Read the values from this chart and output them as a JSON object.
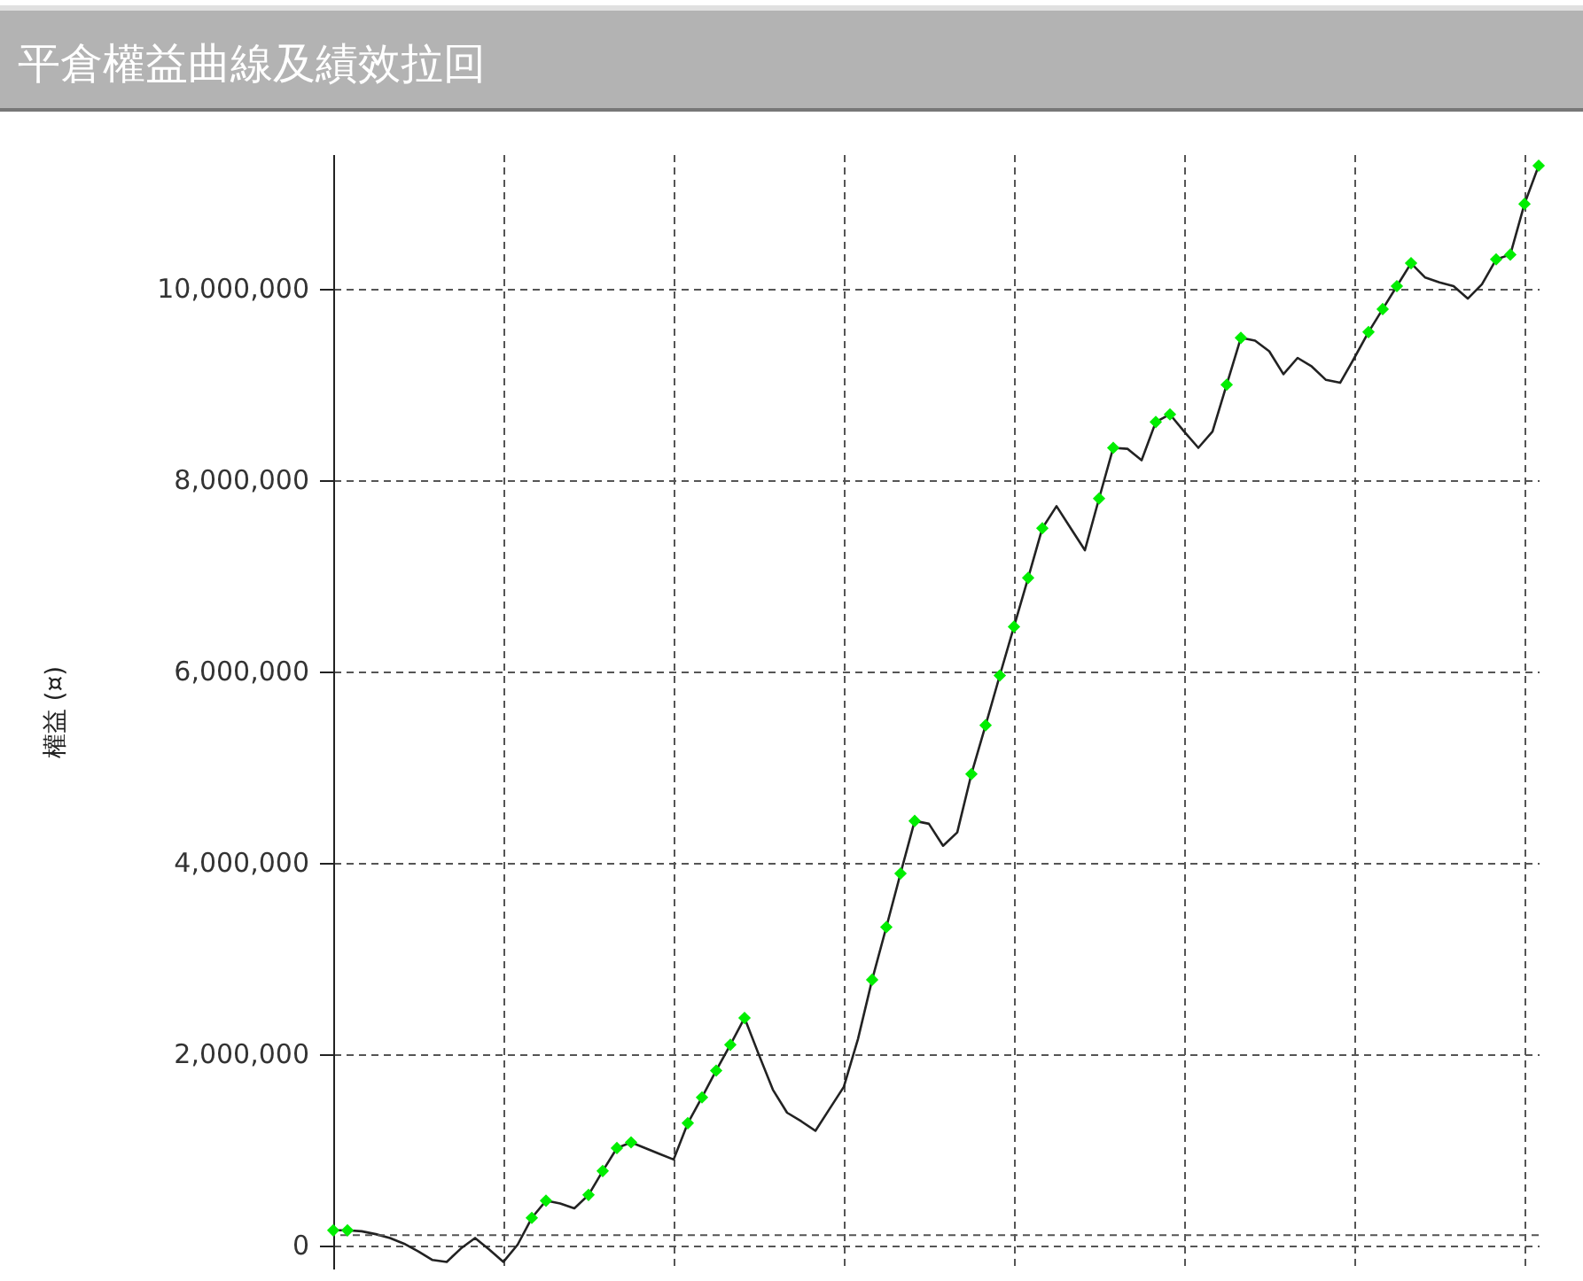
{
  "chart_data": {
    "type": "line",
    "title": "平倉權益曲線及績效拉回",
    "ylabel": "權益 (¤)",
    "categories": [
      null,
      null,
      null,
      null,
      null,
      null,
      null,
      null,
      null,
      null,
      null,
      null,
      null,
      null,
      null,
      null,
      null,
      null,
      null,
      null,
      null,
      null,
      null,
      null,
      null,
      null,
      null,
      null,
      null,
      null,
      null,
      null,
      null,
      null,
      null,
      null,
      null,
      null,
      null,
      null,
      null,
      null,
      null,
      null,
      null,
      null,
      null,
      null,
      null,
      null,
      null,
      null,
      null,
      null,
      null,
      null,
      null,
      null,
      null,
      null,
      null,
      null,
      null,
      null,
      null,
      null,
      null,
      null,
      null,
      null,
      null,
      null,
      null,
      null,
      null,
      null,
      null,
      null,
      null,
      null,
      null,
      null,
      null,
      null,
      null,
      null
    ],
    "ylim": [
      -250000,
      11400000
    ],
    "yticks": [
      0,
      {
        "value": 2000000,
        "label": "2,000,000"
      },
      {
        "value": 4000000,
        "label": "4,000,000"
      },
      {
        "value": 6000000,
        "label": "6,000,000"
      },
      {
        "value": 8000000,
        "label": "8,000,000"
      },
      {
        "value": 10000000,
        "label": "10,000,000"
      }
    ],
    "grid": true,
    "tick_labels": "y",
    "ref_lines": [
      {
        "axis": "y",
        "value": 100000,
        "color": "#555555",
        "line_style": "dashed"
      }
    ],
    "series": [
      {
        "type": "line",
        "color": "#222222",
        "line_style": "solid",
        "values": [
          150000,
          150000,
          140000,
          110000,
          70000,
          10000,
          -70000,
          -160000,
          -180000,
          -40000,
          70000,
          -50000,
          -180000,
          0,
          280000,
          460000,
          430000,
          380000,
          520000,
          770000,
          1010000,
          1070000,
          1010000,
          950000,
          890000,
          1270000,
          1540000,
          1820000,
          2090000,
          2370000,
          1990000,
          1620000,
          1380000,
          1290000,
          1190000,
          1420000,
          1650000,
          2150000,
          2770000,
          3320000,
          3880000,
          4430000,
          4400000,
          4170000,
          4310000,
          4920000,
          5430000,
          5950000,
          6460000,
          6970000,
          7490000,
          7720000,
          7490000,
          7260000,
          7800000,
          8330000,
          8320000,
          8200000,
          8600000,
          8680000,
          8500000,
          8330000,
          8500000,
          8990000,
          9480000,
          9450000,
          9340000,
          9100000,
          9270000,
          9180000,
          9040000,
          9010000,
          9270000,
          9540000,
          9780000,
          10020000,
          10260000,
          10110000,
          10060000,
          10020000,
          9890000,
          10040000,
          10300000,
          10350000,
          10880000,
          11280000
        ]
      },
      {
        "type": "scatter",
        "color": "#00ee00",
        "marker": "diamond",
        "values": [
          150000,
          150000,
          null,
          null,
          null,
          null,
          null,
          null,
          null,
          null,
          null,
          null,
          null,
          null,
          280000,
          460000,
          null,
          null,
          520000,
          770000,
          1010000,
          1070000,
          null,
          null,
          null,
          1270000,
          1540000,
          1820000,
          2090000,
          2370000,
          null,
          null,
          null,
          null,
          null,
          null,
          null,
          null,
          2770000,
          3320000,
          3880000,
          4430000,
          null,
          null,
          null,
          4920000,
          5430000,
          5950000,
          6460000,
          6970000,
          7490000,
          null,
          null,
          null,
          7800000,
          8330000,
          null,
          null,
          8600000,
          8680000,
          null,
          null,
          null,
          8990000,
          9480000,
          null,
          null,
          null,
          null,
          null,
          null,
          null,
          null,
          9540000,
          9780000,
          10020000,
          10260000,
          null,
          null,
          null,
          null,
          null,
          10300000,
          10350000,
          10880000,
          11280000
        ]
      }
    ]
  }
}
